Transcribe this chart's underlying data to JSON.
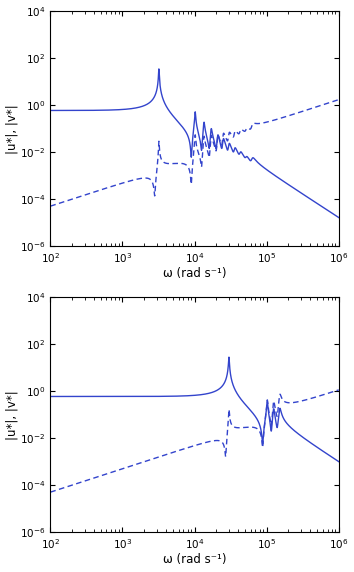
{
  "blue_color": "#3344cc",
  "xlim": [
    100,
    1000000
  ],
  "ylim": [
    1e-06,
    10000.0
  ],
  "xlabel": "ω (rad s⁻¹)",
  "ylabel": "|u*|, |v*|",
  "figsize": [
    3.54,
    5.72
  ],
  "dpi": 100
}
